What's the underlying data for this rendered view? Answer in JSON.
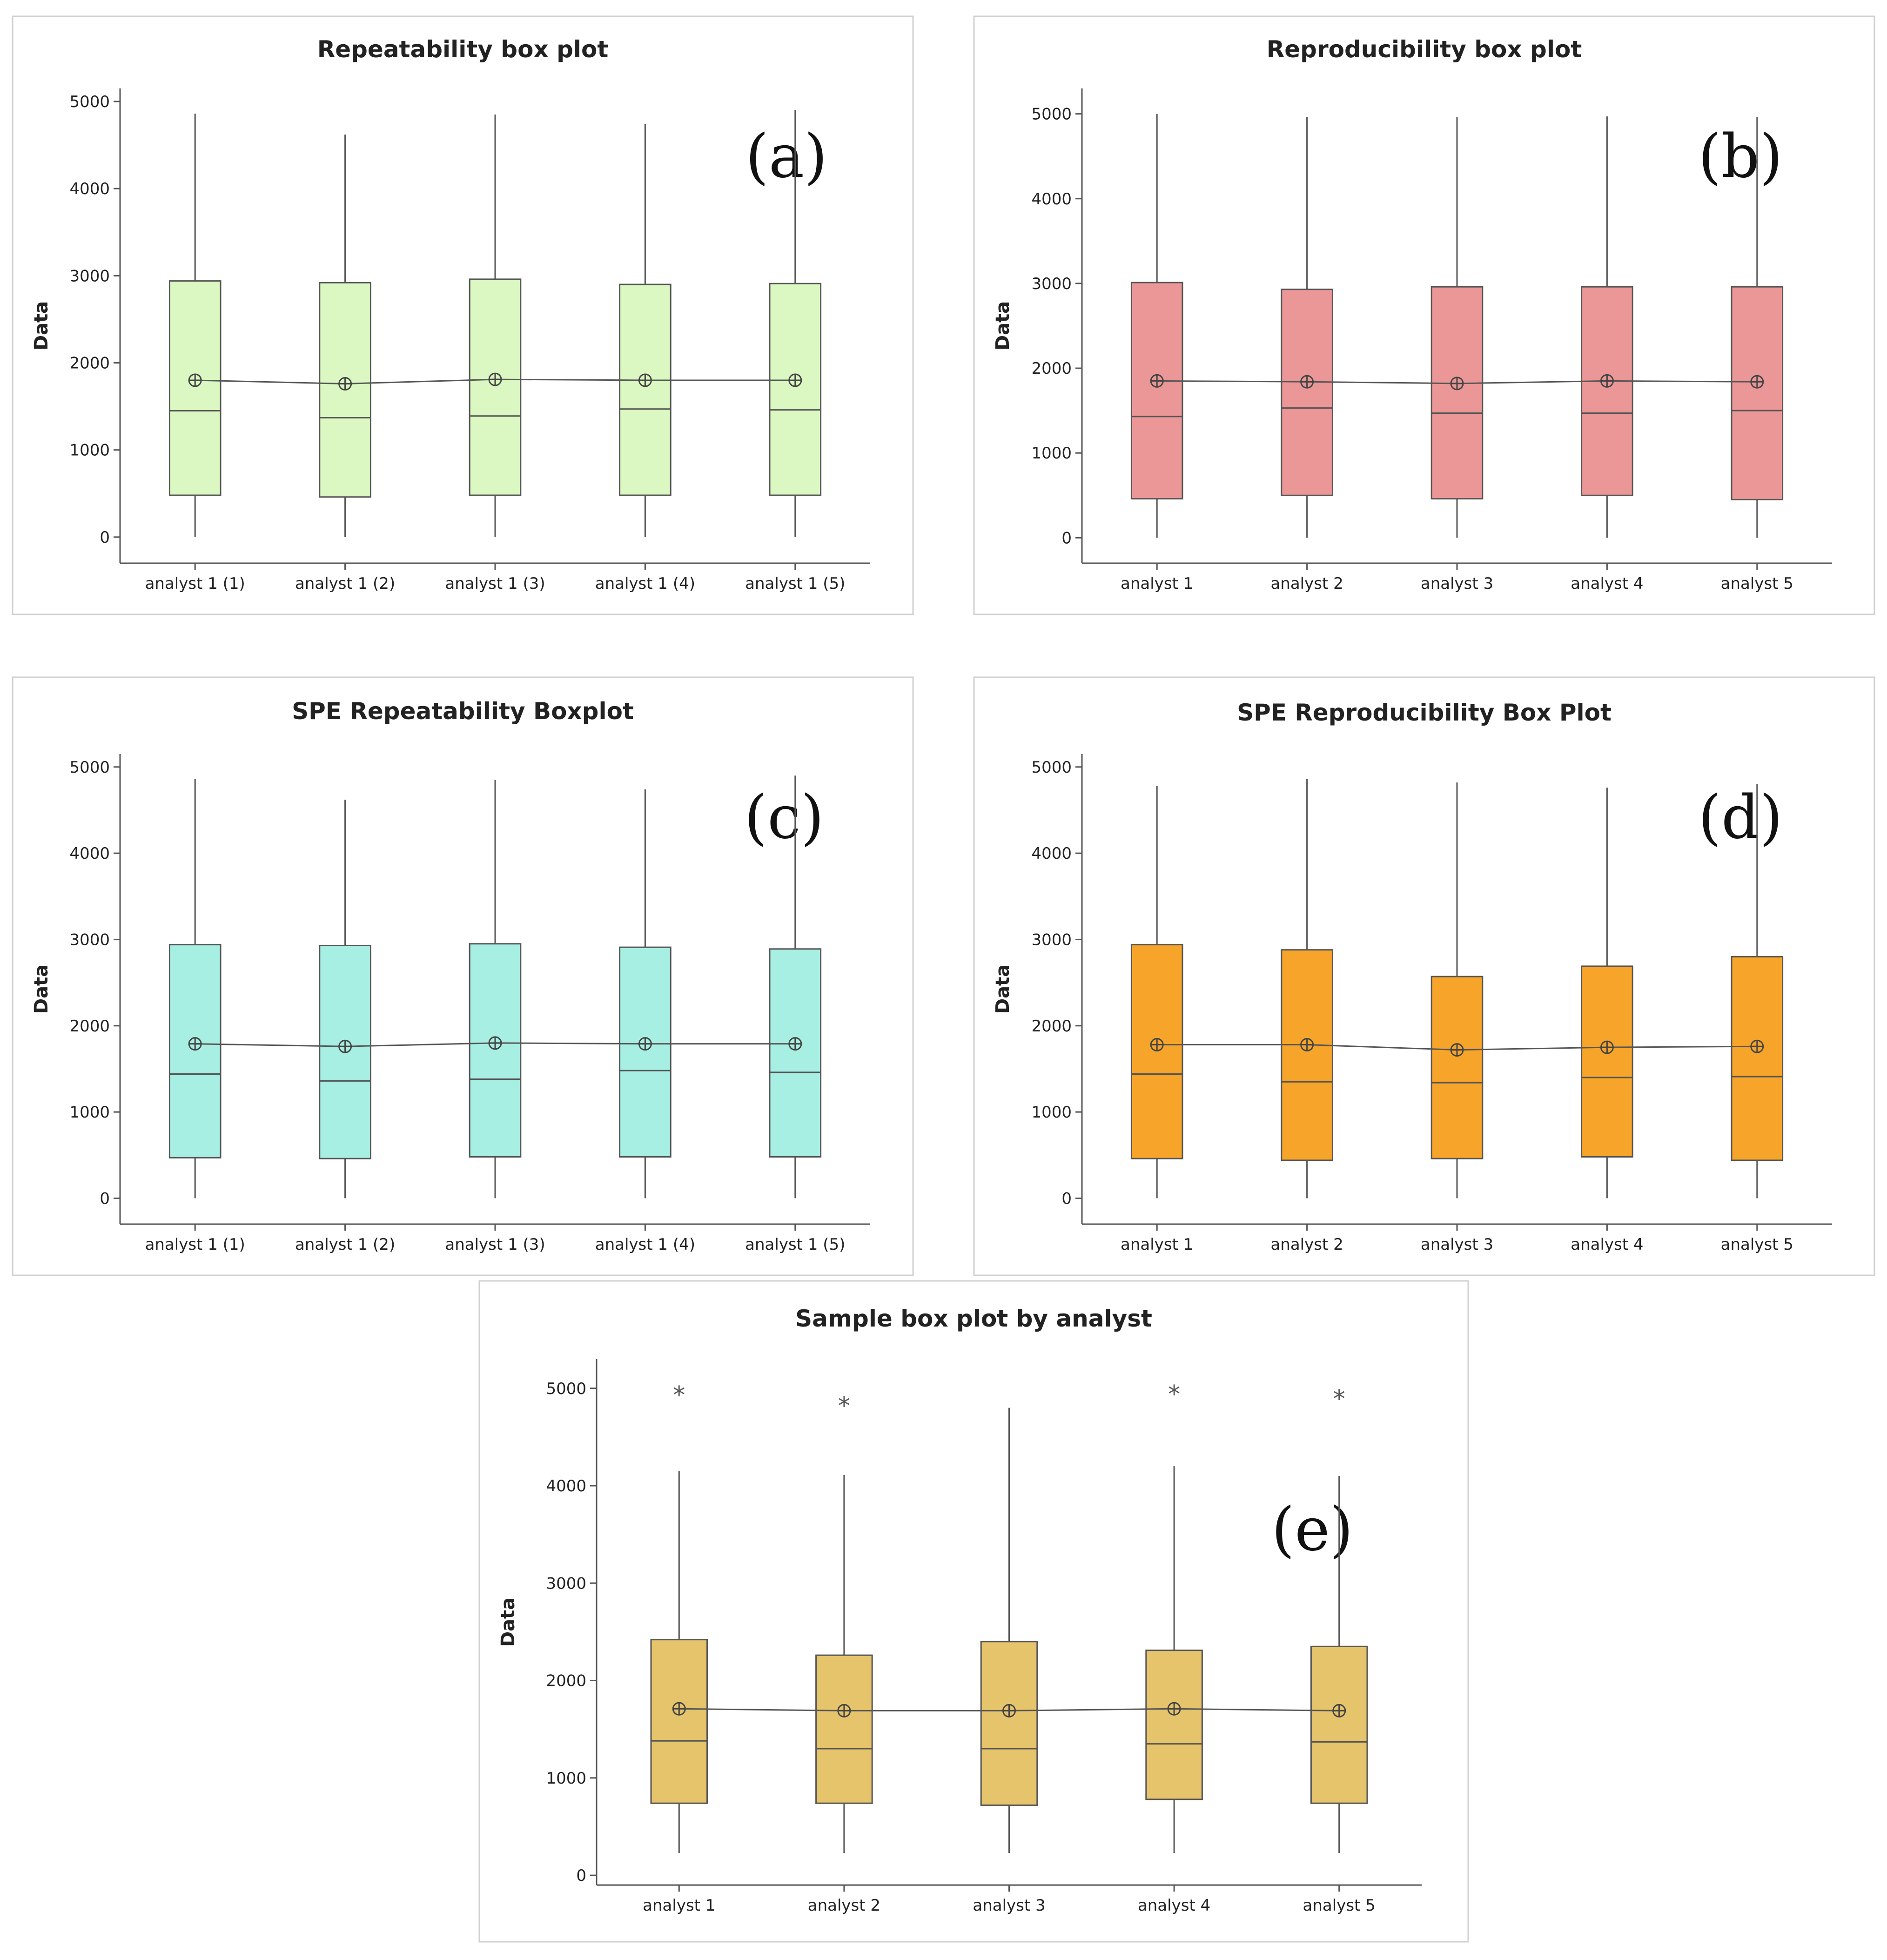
{
  "chart_data": [
    {
      "id": "a",
      "type": "box",
      "tag": "(a)",
      "title": "Repeatability box plot",
      "ylabel": "Data",
      "xlabel": "",
      "ylim": [
        -300,
        5150
      ],
      "yticks": [
        0,
        1000,
        2000,
        3000,
        4000,
        5000
      ],
      "fill": "#dbf7c2",
      "categories": [
        "analyst 1 (1)",
        "analyst 1 (2)",
        "analyst 1 (3)",
        "analyst 1 (4)",
        "analyst 1 (5)"
      ],
      "boxes": [
        {
          "min": 0,
          "q1": 480,
          "median": 1450,
          "q3": 2940,
          "max": 4860,
          "mean": 1800,
          "outliers": []
        },
        {
          "min": 0,
          "q1": 460,
          "median": 1370,
          "q3": 2920,
          "max": 4620,
          "mean": 1760,
          "outliers": []
        },
        {
          "min": 0,
          "q1": 480,
          "median": 1390,
          "q3": 2960,
          "max": 4850,
          "mean": 1810,
          "outliers": []
        },
        {
          "min": 0,
          "q1": 480,
          "median": 1470,
          "q3": 2900,
          "max": 4740,
          "mean": 1800,
          "outliers": []
        },
        {
          "min": 0,
          "q1": 480,
          "median": 1460,
          "q3": 2910,
          "max": 4900,
          "mean": 1800,
          "outliers": []
        }
      ]
    },
    {
      "id": "b",
      "type": "box",
      "tag": "(b)",
      "title": "Reproducibility box plot",
      "ylabel": "Data",
      "xlabel": "",
      "ylim": [
        -300,
        5300
      ],
      "yticks": [
        0,
        1000,
        2000,
        3000,
        4000,
        5000
      ],
      "fill": "#eb9797",
      "categories": [
        "analyst 1",
        "analyst 2",
        "analyst 3",
        "analyst 4",
        "analyst 5"
      ],
      "boxes": [
        {
          "min": 0,
          "q1": 460,
          "median": 1430,
          "q3": 3010,
          "max": 5000,
          "mean": 1850,
          "outliers": []
        },
        {
          "min": 0,
          "q1": 500,
          "median": 1530,
          "q3": 2930,
          "max": 4960,
          "mean": 1840,
          "outliers": []
        },
        {
          "min": 0,
          "q1": 460,
          "median": 1470,
          "q3": 2960,
          "max": 4960,
          "mean": 1820,
          "outliers": []
        },
        {
          "min": 0,
          "q1": 500,
          "median": 1470,
          "q3": 2960,
          "max": 4970,
          "mean": 1850,
          "outliers": []
        },
        {
          "min": 0,
          "q1": 450,
          "median": 1500,
          "q3": 2960,
          "max": 4960,
          "mean": 1840,
          "outliers": []
        }
      ]
    },
    {
      "id": "c",
      "type": "box",
      "tag": "(c)",
      "title": "SPE Repeatability Boxplot",
      "ylabel": "Data",
      "xlabel": "",
      "ylim": [
        -300,
        5150
      ],
      "yticks": [
        0,
        1000,
        2000,
        3000,
        4000,
        5000
      ],
      "fill": "#a8efe3",
      "categories": [
        "analyst 1 (1)",
        "analyst 1 (2)",
        "analyst 1 (3)",
        "analyst 1 (4)",
        "analyst 1 (5)"
      ],
      "boxes": [
        {
          "min": 0,
          "q1": 470,
          "median": 1440,
          "q3": 2940,
          "max": 4860,
          "mean": 1790,
          "outliers": []
        },
        {
          "min": 0,
          "q1": 460,
          "median": 1360,
          "q3": 2930,
          "max": 4620,
          "mean": 1760,
          "outliers": []
        },
        {
          "min": 0,
          "q1": 480,
          "median": 1380,
          "q3": 2950,
          "max": 4850,
          "mean": 1800,
          "outliers": []
        },
        {
          "min": 0,
          "q1": 480,
          "median": 1480,
          "q3": 2910,
          "max": 4740,
          "mean": 1790,
          "outliers": []
        },
        {
          "min": 0,
          "q1": 480,
          "median": 1460,
          "q3": 2890,
          "max": 4900,
          "mean": 1790,
          "outliers": []
        }
      ]
    },
    {
      "id": "d",
      "type": "box",
      "tag": "(d)",
      "title": "SPE Reproducibility Box Plot",
      "ylabel": "Data",
      "xlabel": "",
      "ylim": [
        -300,
        5150
      ],
      "yticks": [
        0,
        1000,
        2000,
        3000,
        4000,
        5000
      ],
      "fill": "#f6a42a",
      "categories": [
        "analyst 1",
        "analyst 2",
        "analyst 3",
        "analyst 4",
        "analyst 5"
      ],
      "boxes": [
        {
          "min": 0,
          "q1": 460,
          "median": 1440,
          "q3": 2940,
          "max": 4780,
          "mean": 1780,
          "outliers": []
        },
        {
          "min": 0,
          "q1": 440,
          "median": 1350,
          "q3": 2880,
          "max": 4860,
          "mean": 1780,
          "outliers": []
        },
        {
          "min": 0,
          "q1": 460,
          "median": 1340,
          "q3": 2570,
          "max": 4820,
          "mean": 1720,
          "outliers": []
        },
        {
          "min": 0,
          "q1": 480,
          "median": 1400,
          "q3": 2690,
          "max": 4760,
          "mean": 1750,
          "outliers": []
        },
        {
          "min": 0,
          "q1": 440,
          "median": 1410,
          "q3": 2800,
          "max": 4800,
          "mean": 1760,
          "outliers": []
        }
      ]
    },
    {
      "id": "e",
      "type": "box",
      "tag": "(e)",
      "title": "Sample box plot by analyst",
      "ylabel": "Data",
      "xlabel": "",
      "ylim": [
        -100,
        5300
      ],
      "yticks": [
        0,
        1000,
        2000,
        3000,
        4000,
        5000
      ],
      "fill": "#e6c46c",
      "categories": [
        "analyst 1",
        "analyst 2",
        "analyst 3",
        "analyst 4",
        "analyst 5"
      ],
      "boxes": [
        {
          "min": 230,
          "q1": 740,
          "median": 1380,
          "q3": 2420,
          "max": 4150,
          "mean": 1710,
          "outliers": [
            4990
          ]
        },
        {
          "min": 230,
          "q1": 740,
          "median": 1300,
          "q3": 2260,
          "max": 4110,
          "mean": 1690,
          "outliers": [
            4880
          ]
        },
        {
          "min": 230,
          "q1": 720,
          "median": 1300,
          "q3": 2400,
          "max": 4800,
          "mean": 1690,
          "outliers": []
        },
        {
          "min": 230,
          "q1": 780,
          "median": 1350,
          "q3": 2310,
          "max": 4200,
          "mean": 1710,
          "outliers": [
            5000
          ]
        },
        {
          "min": 230,
          "q1": 740,
          "median": 1370,
          "q3": 2350,
          "max": 4100,
          "mean": 1690,
          "outliers": [
            4950
          ]
        }
      ]
    }
  ]
}
